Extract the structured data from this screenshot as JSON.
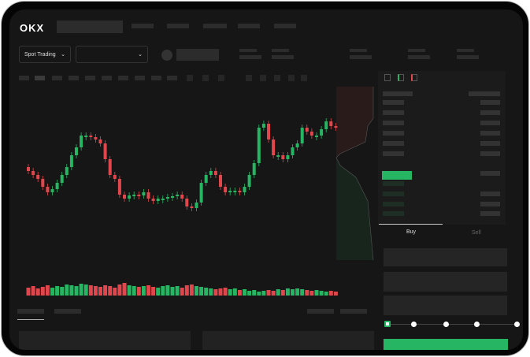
{
  "header": {
    "logo": "OKX"
  },
  "toolbar": {
    "market_type": "Spot Trading",
    "pair_selector": ""
  },
  "trade": {
    "buy_label": "Buy",
    "sell_label": "Sell",
    "slider_level_percent": 0
  },
  "colors": {
    "up": "#26b562",
    "down": "#e0464b",
    "background": "#161616"
  },
  "chart_data": {
    "type": "candlestick",
    "closes": [
      95,
      90,
      85,
      75,
      68,
      72,
      80,
      90,
      100,
      115,
      125,
      140,
      140,
      138,
      135,
      130,
      110,
      90,
      85,
      65,
      60,
      64,
      65,
      64,
      68,
      60,
      57,
      60,
      60,
      62,
      63,
      65,
      60,
      50,
      48,
      55,
      80,
      90,
      95,
      90,
      75,
      68,
      70,
      70,
      68,
      75,
      90,
      105,
      150,
      155,
      135,
      115,
      115,
      110,
      115,
      125,
      130,
      150,
      145,
      140,
      140,
      148,
      158,
      152,
      150
    ],
    "volume": [
      10,
      12,
      9,
      11,
      13,
      10,
      12,
      11,
      14,
      13,
      12,
      15,
      14,
      13,
      12,
      11,
      13,
      12,
      10,
      14,
      16,
      13,
      12,
      11,
      12,
      13,
      11,
      10,
      12,
      13,
      11,
      12,
      10,
      13,
      14,
      12,
      11,
      10,
      9,
      8,
      9,
      10,
      8,
      9,
      7,
      8,
      6,
      7,
      5,
      6,
      7,
      6,
      8,
      7,
      9,
      8,
      9,
      8,
      7,
      6,
      7,
      6,
      5,
      6,
      5
    ]
  }
}
